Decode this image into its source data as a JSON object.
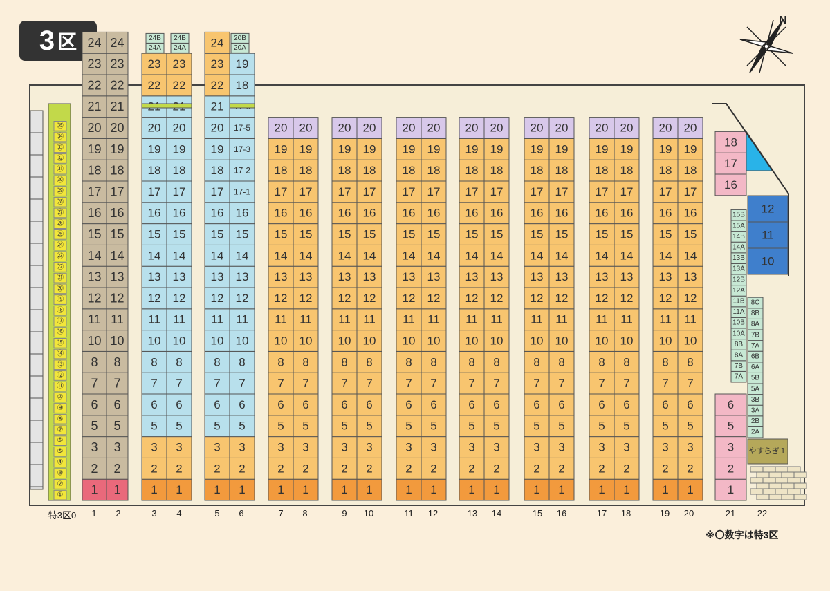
{
  "header": {
    "badge_number": "3",
    "badge_ku": "区"
  },
  "compass": {
    "north_label": "N"
  },
  "footnote": "※〇数字は特3区",
  "column_labels": [
    "特3区0",
    "1",
    "2",
    "3",
    "4",
    "5",
    "6",
    "7",
    "8",
    "9",
    "10",
    "11",
    "12",
    "13",
    "14",
    "15",
    "16",
    "17",
    "18",
    "19",
    "20",
    "21",
    "22"
  ],
  "special_row": [
    "①",
    "②",
    "③",
    "④",
    "⑤",
    "⑥",
    "⑦",
    "⑧",
    "⑨",
    "⑩",
    "⑪",
    "⑫",
    "⑬",
    "⑭",
    "⑮",
    "⑯",
    "⑰",
    "⑱",
    "⑲",
    "⑳",
    "㉑",
    "㉒",
    "㉓",
    "㉔",
    "㉕",
    "㉖",
    "㉗",
    "㉘",
    "㉙",
    "㉚",
    "㉛",
    "㉜",
    "㉝",
    "㉞",
    "㉟"
  ],
  "cols_1_2": [
    "1",
    "2",
    "3",
    "5",
    "6",
    "7",
    "8",
    "10",
    "11",
    "12",
    "13",
    "14",
    "15",
    "16",
    "17",
    "18",
    "19",
    "20",
    "21",
    "22",
    "23",
    "24"
  ],
  "cols_3_4": {
    "main": [
      "1",
      "2",
      "3",
      "5",
      "6",
      "7",
      "8",
      "10",
      "11",
      "12",
      "13",
      "14",
      "15",
      "16",
      "17",
      "18",
      "19",
      "20",
      "21",
      "22",
      "23"
    ],
    "top_small": [
      [
        "24A",
        "24B"
      ],
      [
        "24A",
        "24B"
      ]
    ]
  },
  "col_5": [
    "1",
    "2",
    "3",
    "5",
    "6",
    "7",
    "8",
    "10",
    "11",
    "12",
    "13",
    "14",
    "15",
    "16",
    "17",
    "18",
    "19",
    "20",
    "21",
    "22",
    "23",
    "24"
  ],
  "col_6": [
    "1",
    "2",
    "3",
    "5",
    "6",
    "7",
    "8",
    "10",
    "11",
    "12",
    "13",
    "14",
    "15",
    "16",
    "17-1",
    "17-2",
    "17-3",
    "17-5",
    "17-6",
    "18",
    "19"
  ],
  "col_6_top": [
    "20A",
    "20B"
  ],
  "main_cols": [
    "1",
    "2",
    "3",
    "5",
    "6",
    "7",
    "8",
    "10",
    "11",
    "12",
    "13",
    "14",
    "15",
    "16",
    "17",
    "18",
    "19",
    "20"
  ],
  "col_21": {
    "bottom": [
      "1",
      "2",
      "3",
      "5",
      "6"
    ],
    "top": [
      "16",
      "17",
      "18"
    ],
    "small": [
      "7A",
      "7B",
      "8A",
      "8B",
      "10A",
      "10B",
      "11A",
      "11B",
      "12A",
      "12B",
      "13A",
      "13B",
      "14A",
      "14B",
      "15A",
      "15B"
    ]
  },
  "col_22": {
    "small": [
      "2A",
      "2B",
      "3A",
      "3B",
      "5A",
      "5B",
      "6A",
      "6B",
      "7A",
      "7B",
      "8A",
      "8B",
      "8C"
    ],
    "blue": [
      "10",
      "11",
      "12"
    ],
    "yasuragi": "やすらぎ１"
  },
  "colors": {
    "pink": "#f3b8c6",
    "red_pink": "#e9697b",
    "orange": "#f29a3d",
    "light_orange": "#f8c56f",
    "tan": "#c9bba0",
    "light_blue": "#b8e0ec",
    "lavender": "#d8c8ea",
    "yellow": "#f2e63a",
    "lime": "#c2d94a",
    "mint": "#c7e8d4",
    "blue": "#3f7fcc",
    "cyan": "#29b3e8",
    "olive": "#b5a85a",
    "grey": "#d9d9d9"
  }
}
